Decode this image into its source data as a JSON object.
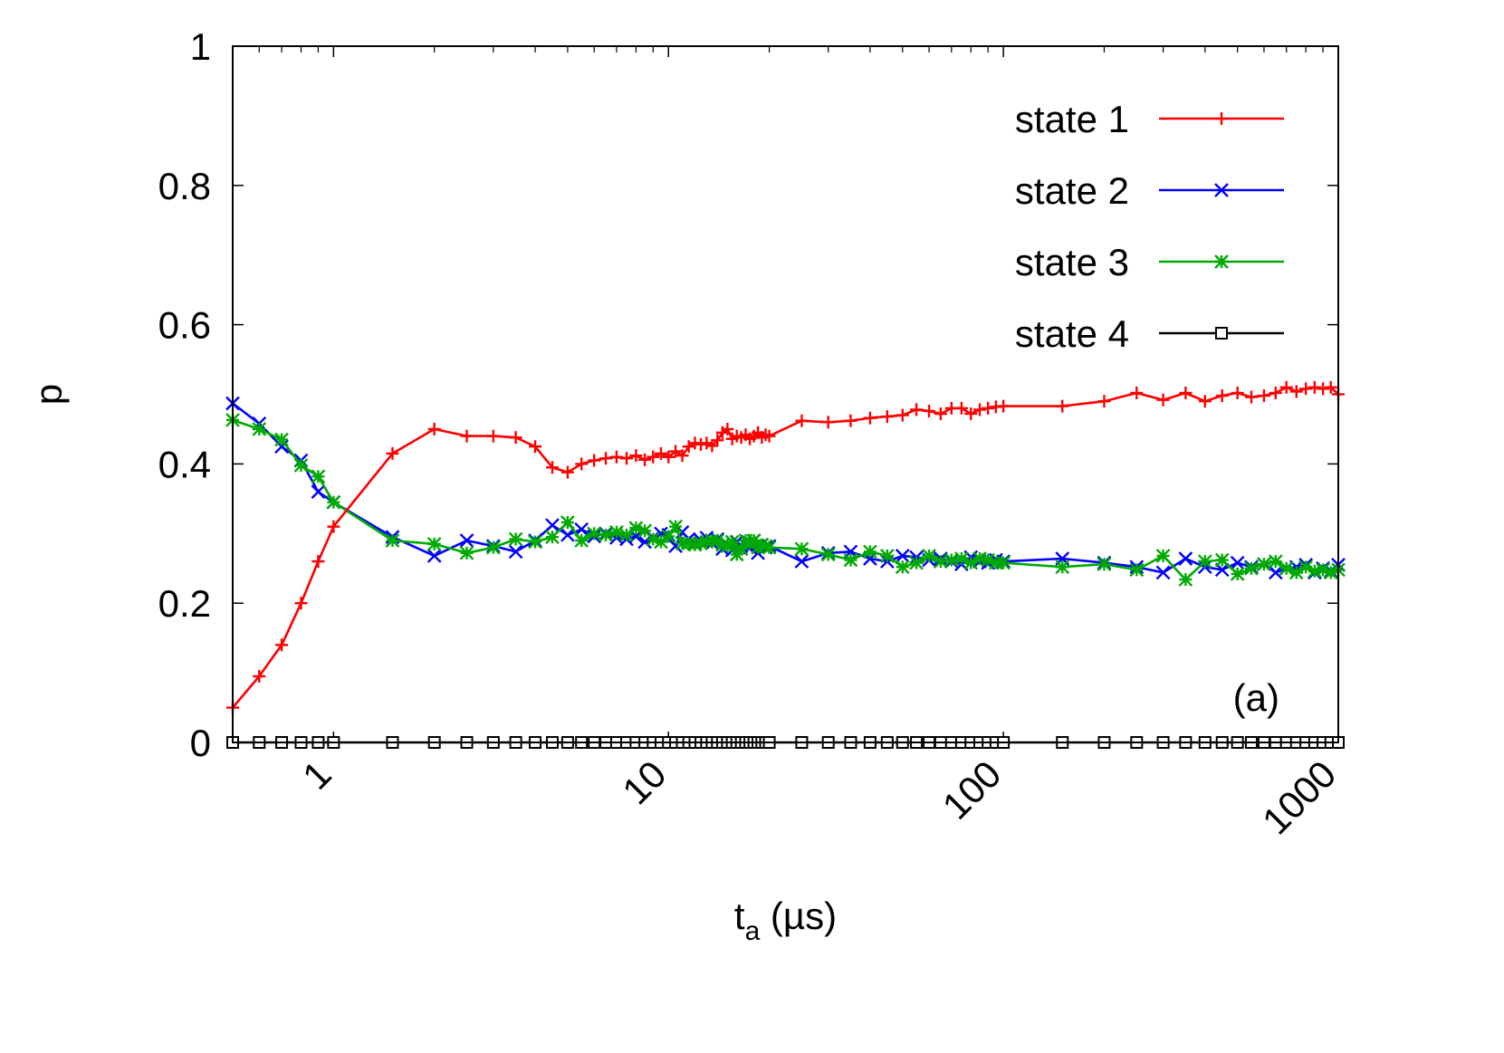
{
  "chart_data": {
    "type": "line",
    "xscale": "log",
    "xlim": [
      0.5,
      1000
    ],
    "ylim": [
      0,
      1
    ],
    "x_ticks": [
      "1",
      "10",
      "100",
      "1000"
    ],
    "y_ticks": [
      "0",
      "0.2",
      "0.4",
      "0.6",
      "0.8",
      "1"
    ],
    "ylabel": "p",
    "xlabel_main": "t",
    "xlabel_sub": "a",
    "xlabel_unit": " (µs)",
    "annotation": "(a)",
    "legend_position": "top-right",
    "series": [
      {
        "name": "state 1",
        "color": "#ff0000",
        "marker": "plus",
        "x": [
          0.5,
          0.6,
          0.7,
          0.8,
          0.9,
          1.0,
          1.5,
          2.0,
          2.5,
          3.0,
          3.5,
          4.0,
          4.5,
          5.0,
          5.5,
          6.0,
          6.5,
          7.0,
          7.5,
          8.0,
          8.5,
          9.0,
          9.5,
          10,
          10.5,
          11,
          11.5,
          12,
          12.5,
          13,
          13.5,
          14,
          14.5,
          15,
          15.5,
          16,
          16.5,
          17,
          17.5,
          18,
          18.5,
          19,
          19.5,
          20,
          25,
          30,
          35,
          40,
          45,
          50,
          55,
          60,
          65,
          70,
          75,
          80,
          85,
          90,
          95,
          100,
          150,
          200,
          250,
          300,
          350,
          400,
          450,
          500,
          550,
          600,
          650,
          700,
          750,
          800,
          850,
          900,
          950,
          1000
        ],
        "y": [
          0.05,
          0.095,
          0.14,
          0.2,
          0.26,
          0.31,
          0.415,
          0.45,
          0.44,
          0.44,
          0.438,
          0.425,
          0.395,
          0.388,
          0.4,
          0.405,
          0.408,
          0.41,
          0.408,
          0.412,
          0.406,
          0.41,
          0.415,
          0.41,
          0.418,
          0.412,
          0.425,
          0.43,
          0.428,
          0.43,
          0.426,
          0.434,
          0.445,
          0.45,
          0.436,
          0.44,
          0.438,
          0.442,
          0.436,
          0.44,
          0.445,
          0.438,
          0.442,
          0.44,
          0.462,
          0.46,
          0.462,
          0.466,
          0.468,
          0.47,
          0.478,
          0.476,
          0.472,
          0.48,
          0.48,
          0.472,
          0.478,
          0.48,
          0.482,
          0.483,
          0.483,
          0.49,
          0.502,
          0.492,
          0.502,
          0.49,
          0.498,
          0.502,
          0.496,
          0.498,
          0.502,
          0.51,
          0.504,
          0.508,
          0.51,
          0.508,
          0.51,
          0.5
        ]
      },
      {
        "name": "state 2",
        "color": "#0000ff",
        "marker": "cross",
        "x": [
          0.5,
          0.6,
          0.7,
          0.8,
          0.9,
          1.0,
          1.5,
          2.0,
          2.5,
          3.0,
          3.5,
          4.0,
          4.5,
          5.0,
          5.5,
          6.0,
          6.5,
          7.0,
          7.5,
          8.0,
          8.5,
          9.0,
          9.5,
          10,
          10.5,
          11,
          11.5,
          12,
          12.5,
          13,
          13.5,
          14,
          14.5,
          15,
          15.5,
          16,
          16.5,
          17,
          17.5,
          18,
          18.5,
          19,
          19.5,
          20,
          25,
          30,
          35,
          40,
          45,
          50,
          55,
          60,
          65,
          70,
          75,
          80,
          85,
          90,
          95,
          100,
          150,
          200,
          250,
          300,
          350,
          400,
          450,
          500,
          550,
          600,
          650,
          700,
          750,
          800,
          850,
          900,
          950,
          1000
        ],
        "y": [
          0.487,
          0.458,
          0.425,
          0.405,
          0.36,
          0.345,
          0.295,
          0.268,
          0.29,
          0.282,
          0.274,
          0.29,
          0.312,
          0.298,
          0.306,
          0.296,
          0.3,
          0.294,
          0.292,
          0.296,
          0.288,
          0.294,
          0.3,
          0.298,
          0.282,
          0.302,
          0.292,
          0.286,
          0.29,
          0.294,
          0.286,
          0.292,
          0.278,
          0.284,
          0.276,
          0.288,
          0.282,
          0.284,
          0.28,
          0.29,
          0.272,
          0.284,
          0.28,
          0.282,
          0.26,
          0.272,
          0.274,
          0.264,
          0.26,
          0.268,
          0.266,
          0.262,
          0.264,
          0.26,
          0.256,
          0.266,
          0.26,
          0.258,
          0.262,
          0.26,
          0.264,
          0.258,
          0.252,
          0.244,
          0.264,
          0.252,
          0.248,
          0.258,
          0.252,
          0.256,
          0.244,
          0.25,
          0.252,
          0.255,
          0.244,
          0.25,
          0.246,
          0.255
        ]
      },
      {
        "name": "state 3",
        "color": "#00aa00",
        "marker": "star",
        "x": [
          0.5,
          0.6,
          0.7,
          0.8,
          0.9,
          1.0,
          1.5,
          2.0,
          2.5,
          3.0,
          3.5,
          4.0,
          4.5,
          5.0,
          5.5,
          6.0,
          6.5,
          7.0,
          7.5,
          8.0,
          8.5,
          9.0,
          9.5,
          10,
          10.5,
          11,
          11.5,
          12,
          12.5,
          13,
          13.5,
          14,
          14.5,
          15,
          15.5,
          16,
          16.5,
          17,
          17.5,
          18,
          18.5,
          19,
          19.5,
          20,
          25,
          30,
          35,
          40,
          45,
          50,
          55,
          60,
          65,
          70,
          75,
          80,
          85,
          90,
          95,
          100,
          150,
          200,
          250,
          300,
          350,
          400,
          450,
          500,
          550,
          600,
          650,
          700,
          750,
          800,
          850,
          900,
          950,
          1000
        ],
        "y": [
          0.463,
          0.45,
          0.435,
          0.398,
          0.382,
          0.345,
          0.29,
          0.285,
          0.272,
          0.28,
          0.292,
          0.288,
          0.295,
          0.316,
          0.29,
          0.3,
          0.298,
          0.302,
          0.298,
          0.308,
          0.304,
          0.292,
          0.288,
          0.296,
          0.31,
          0.286,
          0.286,
          0.284,
          0.286,
          0.288,
          0.29,
          0.29,
          0.284,
          0.282,
          0.288,
          0.27,
          0.278,
          0.29,
          0.286,
          0.29,
          0.28,
          0.284,
          0.282,
          0.28,
          0.278,
          0.27,
          0.262,
          0.274,
          0.268,
          0.252,
          0.258,
          0.268,
          0.26,
          0.262,
          0.264,
          0.258,
          0.264,
          0.262,
          0.258,
          0.258,
          0.252,
          0.256,
          0.248,
          0.268,
          0.234,
          0.26,
          0.262,
          0.242,
          0.25,
          0.256,
          0.26,
          0.25,
          0.244,
          0.252,
          0.246,
          0.248,
          0.244,
          0.248
        ]
      },
      {
        "name": "state 4",
        "color": "#000000",
        "marker": "square",
        "x": [
          0.5,
          0.6,
          0.7,
          0.8,
          0.9,
          1.0,
          1.5,
          2.0,
          2.5,
          3.0,
          3.5,
          4.0,
          4.5,
          5.0,
          5.5,
          6.0,
          6.5,
          7.0,
          7.5,
          8.0,
          8.5,
          9.0,
          9.5,
          10,
          10.5,
          11,
          11.5,
          12,
          12.5,
          13,
          13.5,
          14,
          14.5,
          15,
          15.5,
          16,
          16.5,
          17,
          17.5,
          18,
          18.5,
          19,
          19.5,
          20,
          25,
          30,
          35,
          40,
          45,
          50,
          55,
          60,
          65,
          70,
          75,
          80,
          85,
          90,
          95,
          100,
          150,
          200,
          250,
          300,
          350,
          400,
          450,
          500,
          550,
          600,
          650,
          700,
          750,
          800,
          850,
          900,
          950,
          1000
        ],
        "y": [
          0,
          0,
          0,
          0,
          0,
          0,
          0,
          0,
          0,
          0,
          0,
          0,
          0,
          0,
          0,
          0,
          0,
          0,
          0,
          0,
          0,
          0,
          0,
          0,
          0,
          0,
          0,
          0,
          0,
          0,
          0,
          0,
          0,
          0,
          0,
          0,
          0,
          0,
          0,
          0,
          0,
          0,
          0,
          0,
          0,
          0,
          0,
          0,
          0,
          0,
          0,
          0,
          0,
          0,
          0,
          0,
          0,
          0,
          0,
          0,
          0,
          0,
          0,
          0,
          0,
          0,
          0,
          0,
          0,
          0,
          0,
          0,
          0,
          0,
          0,
          0,
          0,
          0
        ]
      }
    ]
  }
}
